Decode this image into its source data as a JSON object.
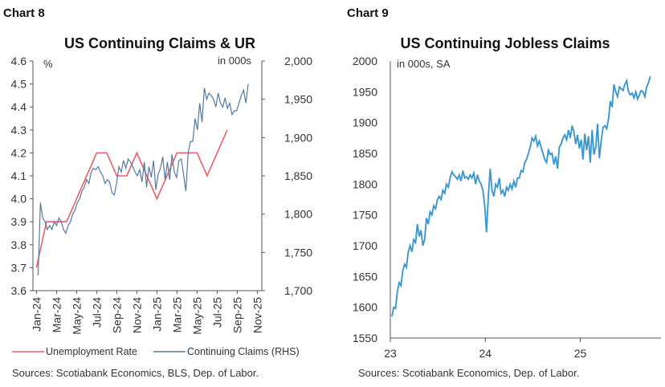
{
  "chart_data": [
    {
      "type": "line",
      "label": "Chart 8",
      "title": "US Continuing Claims & UR",
      "left_unit": "%",
      "right_unit": "in 000s",
      "left_ylim": [
        3.6,
        4.6
      ],
      "right_ylim": [
        1700,
        2000
      ],
      "left_ticks": [
        "3.6",
        "3.7",
        "3.8",
        "3.9",
        "4.0",
        "4.1",
        "4.2",
        "4.3",
        "4.4",
        "4.5",
        "4.6"
      ],
      "right_ticks": [
        "1,700",
        "1,750",
        "1,800",
        "1,850",
        "1,900",
        "1,950",
        "2,000"
      ],
      "x_ticks": [
        "Jan-24",
        "Mar-24",
        "May-24",
        "Jul-24",
        "Sep-24",
        "Nov-24",
        "Jan-25",
        "Mar-25",
        "May-25",
        "Jul-25",
        "Sep-25",
        "Nov-25"
      ],
      "grid": false,
      "legend": "bottom",
      "series": [
        {
          "name": "Unemployment Rate",
          "axis": "left",
          "color": "#e8606a",
          "months": [
            "Jan-24",
            "Feb-24",
            "Mar-24",
            "Apr-24",
            "May-24",
            "Jun-24",
            "Jul-24",
            "Aug-24",
            "Sep-24",
            "Oct-24",
            "Nov-24",
            "Dec-24",
            "Jan-25",
            "Feb-25",
            "Mar-25",
            "Apr-25",
            "May-25",
            "Jun-25",
            "Jul-25",
            "Aug-25"
          ],
          "values": [
            3.7,
            3.9,
            3.9,
            3.9,
            4.0,
            4.1,
            4.2,
            4.2,
            4.1,
            4.1,
            4.2,
            4.1,
            4.0,
            4.1,
            4.2,
            4.2,
            4.2,
            4.1,
            4.2,
            4.3
          ]
        },
        {
          "name": "Continuing Claims (RHS)",
          "axis": "right",
          "color": "#56789e",
          "start": "2024-01-06",
          "freq": "weekly",
          "values": [
            1720,
            1815,
            1795,
            1790,
            1780,
            1785,
            1780,
            1790,
            1785,
            1795,
            1790,
            1780,
            1775,
            1785,
            1790,
            1800,
            1805,
            1815,
            1820,
            1830,
            1835,
            1845,
            1840,
            1855,
            1860,
            1858,
            1862,
            1855,
            1850,
            1840,
            1845,
            1842,
            1828,
            1825,
            1840,
            1862,
            1855,
            1870,
            1860,
            1872,
            1868,
            1862,
            1855,
            1850,
            1858,
            1842,
            1868,
            1835,
            1862,
            1848,
            1870,
            1832,
            1852,
            1860,
            1875,
            1845,
            1868,
            1845,
            1878,
            1855,
            1848,
            1870,
            1872,
            1852,
            1830,
            1880,
            1895,
            1895,
            1925,
            1910,
            1945,
            1920,
            1965,
            1950,
            1958,
            1955,
            1950,
            1940,
            1958,
            1945,
            1940,
            1952,
            1938,
            1945,
            1930,
            1935,
            1935,
            1945,
            1955,
            1962,
            1945,
            1970
          ]
        }
      ],
      "source": "Sources: Scotiabank Economics, BLS, Dep. of Labor."
    },
    {
      "type": "line",
      "label": "Chart 9",
      "title": "US Continuing Jobless Claims",
      "unit": "in 000s, SA",
      "ylim": [
        1550,
        2000
      ],
      "y_ticks": [
        "1550",
        "1600",
        "1650",
        "1700",
        "1750",
        "1800",
        "1850",
        "1900",
        "1950",
        "2000"
      ],
      "x_ticks": [
        "23",
        "24",
        "25"
      ],
      "x_range": [
        2023.0,
        2025.85
      ],
      "grid": false,
      "series": [
        {
          "color": "#3b98cc",
          "start": "2023-01-07",
          "freq": "weekly",
          "values": [
            1585,
            1600,
            1598,
            1625,
            1640,
            1635,
            1660,
            1670,
            1665,
            1690,
            1700,
            1690,
            1710,
            1705,
            1735,
            1715,
            1725,
            1700,
            1710,
            1745,
            1735,
            1755,
            1750,
            1765,
            1760,
            1775,
            1780,
            1775,
            1790,
            1785,
            1800,
            1795,
            1810,
            1820,
            1815,
            1812,
            1808,
            1815,
            1805,
            1822,
            1810,
            1812,
            1808,
            1815,
            1810,
            1818,
            1800,
            1815,
            1805,
            1800,
            1790,
            1765,
            1722,
            1780,
            1825,
            1790,
            1780,
            1800,
            1795,
            1810,
            1785,
            1790,
            1780,
            1795,
            1790,
            1800,
            1792,
            1805,
            1795,
            1810,
            1810,
            1822,
            1820,
            1835,
            1840,
            1850,
            1860,
            1875,
            1870,
            1878,
            1862,
            1870,
            1860,
            1850,
            1840,
            1835,
            1855,
            1848,
            1850,
            1832,
            1845,
            1825,
            1860,
            1865,
            1875,
            1880,
            1872,
            1888,
            1875,
            1895,
            1885,
            1865,
            1880,
            1858,
            1872,
            1840,
            1882,
            1855,
            1878,
            1835,
            1888,
            1848,
            1860,
            1898,
            1842,
            1870,
            1892,
            1895,
            1890,
            1905,
            1935,
            1925,
            1962,
            1950,
            1942,
            1958,
            1955,
            1952,
            1962,
            1968,
            1950,
            1945,
            1948,
            1940,
            1950,
            1938,
            1945,
            1952,
            1950,
            1942,
            1958,
            1965,
            1975
          ]
        }
      ],
      "source": "Sources: Scotiabank Economics, Dep. of Labor."
    }
  ]
}
